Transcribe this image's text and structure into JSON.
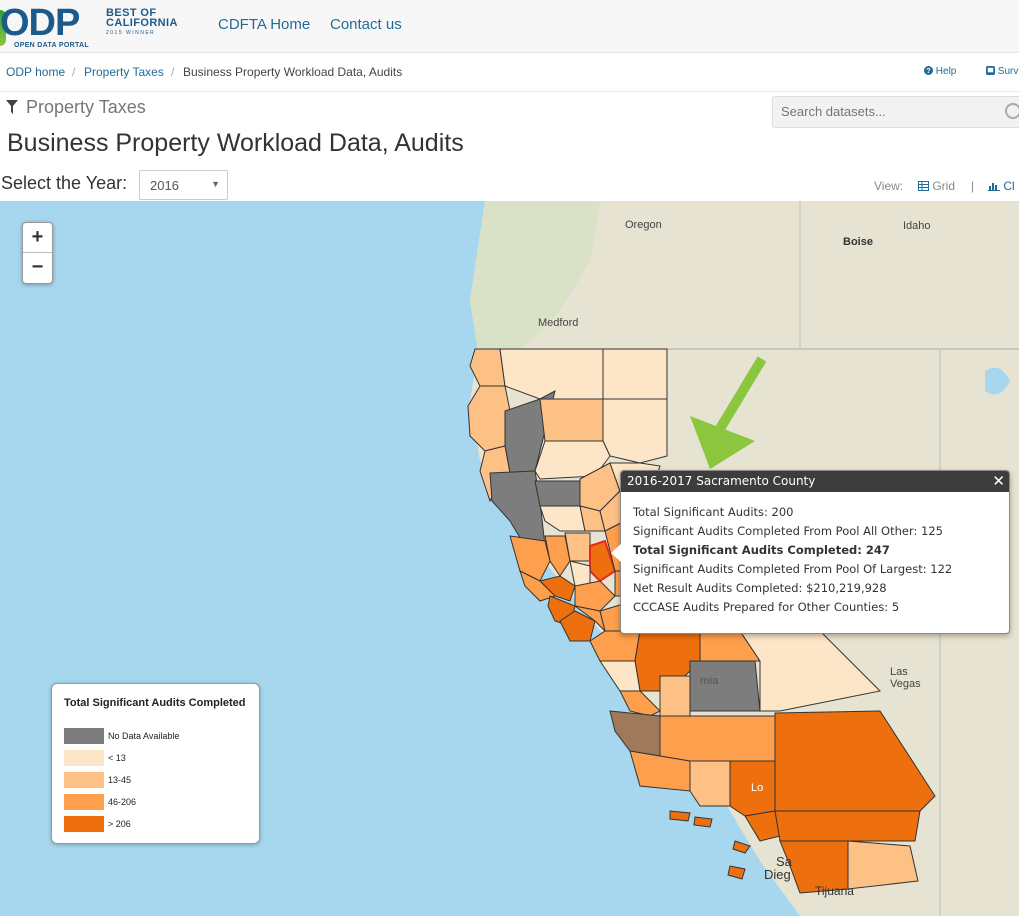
{
  "header": {
    "logo_text": "ODP",
    "logo_sub": "OPEN DATA PORTAL",
    "badge_line1": "BEST OF",
    "badge_line2": "CALIFORNIA",
    "badge_line3": "2015 WINNER",
    "nav": [
      {
        "label": "CDFTA Home"
      },
      {
        "label": "Contact us"
      }
    ]
  },
  "breadcrumb": {
    "items": [
      "ODP home",
      "Property Taxes",
      "Business Property Workload Data, Audits"
    ],
    "separator": "/"
  },
  "tools": {
    "help": "Help",
    "survey": "Surv"
  },
  "category": {
    "label": "Property Taxes",
    "icon": "funnel-icon"
  },
  "search": {
    "placeholder": "Search datasets..."
  },
  "page": {
    "title": "Business Property Workload Data, Audits",
    "year_label": "Select the Year:",
    "year_value": "2016"
  },
  "view": {
    "label": "View:",
    "grid": "Grid",
    "separator": "|",
    "chart": "Cl"
  },
  "map": {
    "zoom_in": "+",
    "zoom_out": "−",
    "place_labels": [
      "Oregon",
      "Idaho",
      "Boise",
      "Medford",
      "Las",
      "Vegas",
      "rnia",
      "Lo",
      "Sa",
      "Dieg",
      "Tijuana"
    ],
    "colors": {
      "ocean": "#a7d7ef",
      "land": "#e9e4d4",
      "no_data": "#7d7d7d",
      "lt13": "#fde6c7",
      "13_45": "#fdc085",
      "46_206": "#fd9f4c",
      "gt206": "#ee6f0e",
      "highlight": "#e4291e",
      "arrow": "#8cc63f"
    }
  },
  "popup": {
    "title": "2016-2017 Sacramento County",
    "close": "✕",
    "lines": [
      "Total Significant Audits: 200",
      "Significant Audits Completed From Pool All Other: 125",
      "Total Significant Audits Completed: 247",
      "Significant Audits Completed From Pool Of Largest: 122",
      "Net Result Audits Completed: $210,219,928",
      "CCCASE Audits Prepared for Other Counties: 5"
    ]
  },
  "legend": {
    "title": "Total Significant Audits Completed",
    "items": [
      {
        "label": "No Data Available",
        "color": "#7d7d7d"
      },
      {
        "label": "< 13",
        "color": "#fde6c7"
      },
      {
        "label": "13-45",
        "color": "#fdc085"
      },
      {
        "label": "46-206",
        "color": "#fd9f4c"
      },
      {
        "label": "> 206",
        "color": "#ee6f0e"
      }
    ]
  }
}
